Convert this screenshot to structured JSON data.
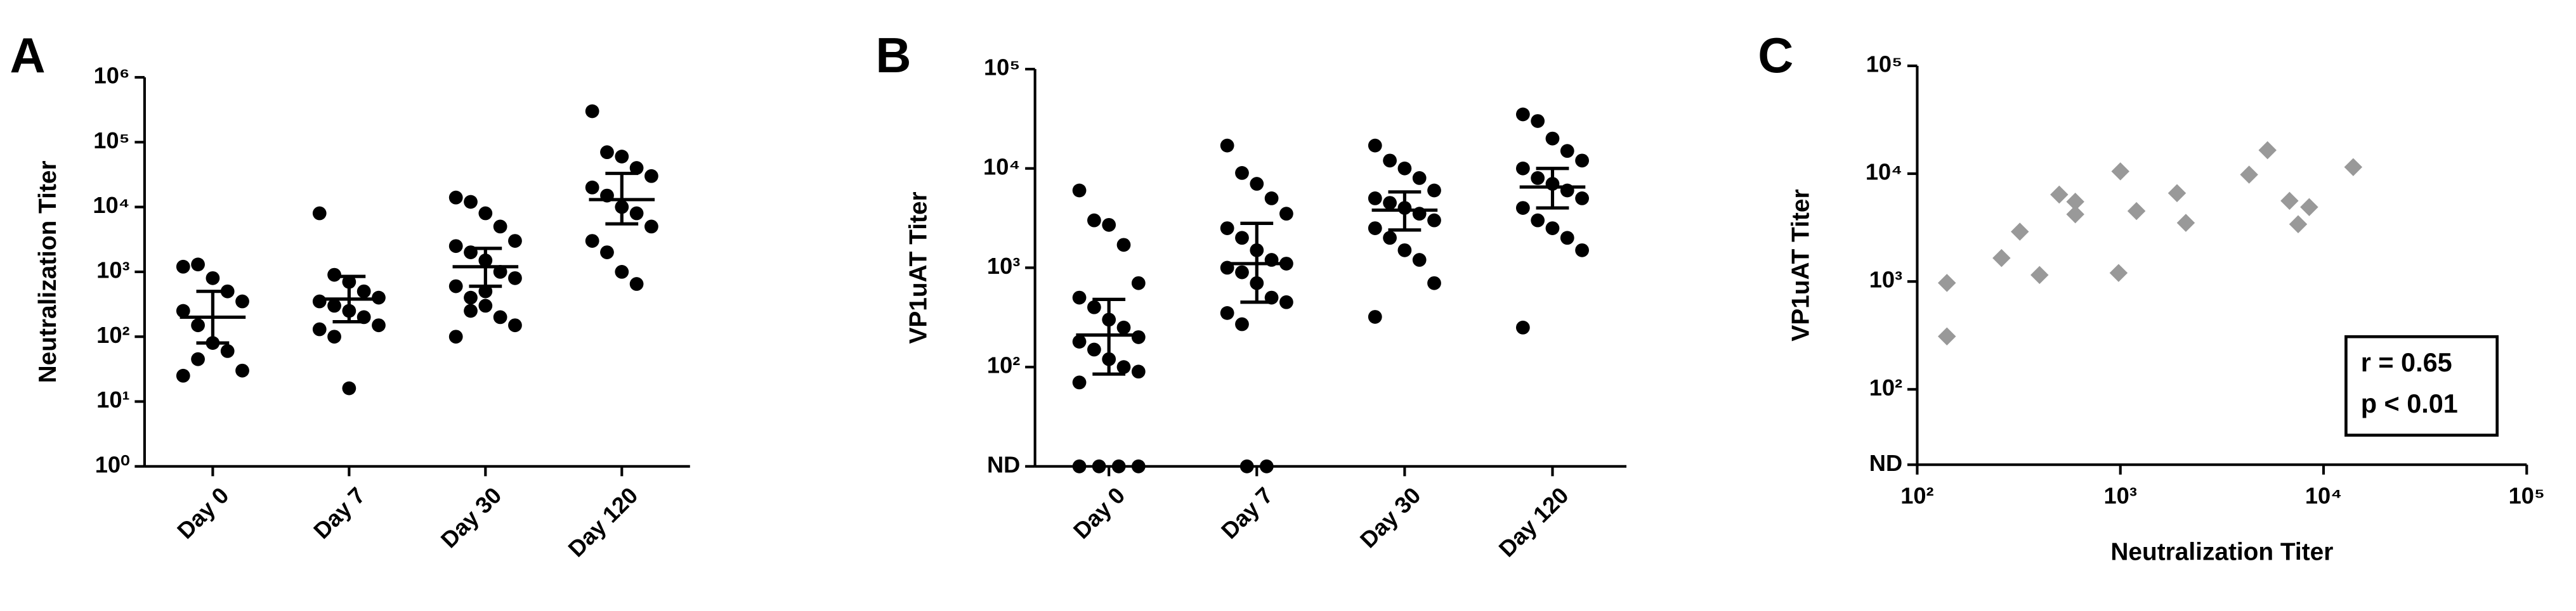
{
  "chart_data": [
    {
      "type": "dot",
      "panel_label": "A",
      "ylabel": "Neutralization Titer",
      "log_y": true,
      "color": "#000000",
      "categories": [
        "Day 0",
        "Day 7",
        "Day 30",
        "Day 120"
      ],
      "values": [
        [
          1200,
          1300,
          800,
          500,
          350,
          250,
          150,
          80,
          60,
          30,
          25,
          45
        ],
        [
          8000,
          900,
          700,
          500,
          400,
          350,
          300,
          250,
          200,
          150,
          130,
          100,
          16
        ],
        [
          14000,
          12000,
          8000,
          5000,
          3000,
          2500,
          2000,
          1500,
          1000,
          800,
          600,
          400,
          300,
          200,
          150,
          100,
          250,
          500
        ],
        [
          300000,
          70000,
          60000,
          40000,
          30000,
          20000,
          15000,
          10000,
          8000,
          5000,
          3000,
          2000,
          1000,
          650
        ]
      ],
      "center": [
        200,
        380,
        1200,
        13000
      ],
      "error_low": [
        80,
        170,
        600,
        5500
      ],
      "error_high": [
        500,
        850,
        2300,
        33000
      ],
      "ylim": [
        1,
        1000000
      ],
      "yticks": [
        {
          "value": 1,
          "label": "10⁰"
        },
        {
          "value": 10,
          "label": "10¹"
        },
        {
          "value": 100,
          "label": "10²"
        },
        {
          "value": 1000,
          "label": "10³"
        },
        {
          "value": 10000,
          "label": "10⁴"
        },
        {
          "value": 100000,
          "label": "10⁵"
        },
        {
          "value": 1000000,
          "label": "10⁶"
        }
      ]
    },
    {
      "type": "dot",
      "panel_label": "B",
      "ylabel": "VP1uAT Titer",
      "log_y": true,
      "color": "#000000",
      "categories": [
        "Day 0",
        "Day 7",
        "Day 30",
        "Day 120"
      ],
      "values": [
        [
          6000,
          3000,
          2700,
          1700,
          700,
          500,
          400,
          300,
          250,
          200,
          180,
          150,
          120,
          100,
          90,
          70
        ],
        [
          17000,
          9000,
          7000,
          5000,
          3500,
          2500,
          2000,
          1500,
          1200,
          1100,
          1000,
          900,
          700,
          500,
          450,
          350,
          270
        ],
        [
          17000,
          12000,
          10000,
          8000,
          6000,
          5000,
          4500,
          4000,
          3500,
          3000,
          2500,
          2000,
          1500,
          1200,
          700,
          320
        ],
        [
          35000,
          30000,
          20000,
          15000,
          12000,
          10000,
          8000,
          7000,
          6000,
          5000,
          4000,
          3000,
          2500,
          2000,
          1500,
          250
        ]
      ],
      "nd_counts": [
        4,
        2,
        0,
        0
      ],
      "center": [
        210,
        1100,
        3800,
        6500
      ],
      "error_low": [
        85,
        450,
        2400,
        4000
      ],
      "error_high": [
        480,
        2800,
        5800,
        10000
      ],
      "ylim": [
        10,
        100000
      ],
      "yticks": [
        {
          "value": 10,
          "label": "ND"
        },
        {
          "value": 100,
          "label": "10²"
        },
        {
          "value": 1000,
          "label": "10³"
        },
        {
          "value": 10000,
          "label": "10⁴"
        },
        {
          "value": 100000,
          "label": "10⁵"
        }
      ]
    },
    {
      "type": "scatter",
      "panel_label": "C",
      "xlabel": "Neutralization Titer",
      "ylabel": "VP1uAT Titer",
      "log_x": true,
      "log_y": true,
      "color": "#999999",
      "x": [
        140,
        140,
        260,
        320,
        400,
        500,
        600,
        600,
        1000,
        980,
        1200,
        1900,
        2100,
        4300,
        5300,
        6800,
        7500,
        8500,
        14000
      ],
      "y": [
        970,
        310,
        1650,
        2900,
        1150,
        6400,
        4200,
        5500,
        10500,
        1200,
        4500,
        6600,
        3500,
        9800,
        16500,
        5600,
        3400,
        4900,
        11500
      ],
      "xlim": [
        100,
        100000
      ],
      "xticks": [
        {
          "value": 100,
          "label": "10²"
        },
        {
          "value": 1000,
          "label": "10³"
        },
        {
          "value": 10000,
          "label": "10⁴"
        },
        {
          "value": 100000,
          "label": "10⁵"
        }
      ],
      "ylim": [
        20,
        100000
      ],
      "yticks": [
        {
          "value": 20,
          "label": "ND"
        },
        {
          "value": 100,
          "label": "10²"
        },
        {
          "value": 1000,
          "label": "10³"
        },
        {
          "value": 10000,
          "label": "10⁴"
        },
        {
          "value": 100000,
          "label": "10⁵"
        }
      ],
      "annotations": [
        "r = 0.65",
        "p < 0.01"
      ]
    }
  ]
}
